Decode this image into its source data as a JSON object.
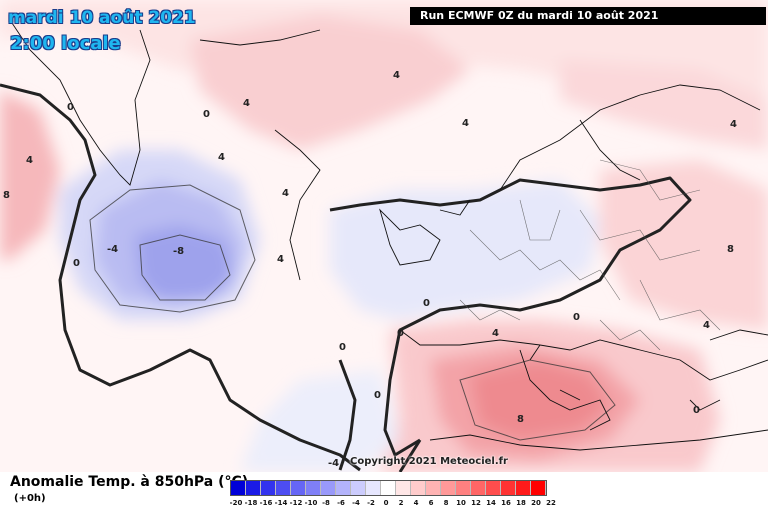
{
  "map": {
    "date_title": "mardi 10 août 2021",
    "time_title": "2:00 locale",
    "run_label": "Run ECMWF 0Z du mardi 10 août 2021",
    "copyright": "Copyright 2021 Meteociel.fr",
    "contour_labels": [
      "4",
      "4",
      "4",
      "4",
      "4",
      "4",
      "4",
      "4",
      "4",
      "4",
      "8",
      "8",
      "8",
      "-4",
      "-8",
      "0",
      "0",
      "0",
      "0",
      "0",
      "0",
      "0",
      "0",
      "0",
      "-4"
    ]
  },
  "legend": {
    "title": "Anomalie Temp. à 850hPa (°C)",
    "subtitle": "(+0h)",
    "scale_labels": [
      "-20",
      "-18",
      "-16",
      "-14",
      "-12",
      "-10",
      "-8",
      "-6",
      "-4",
      "-2",
      "0",
      "2",
      "4",
      "6",
      "8",
      "10",
      "12",
      "14",
      "16",
      "18",
      "20",
      "22"
    ],
    "scale_colors": [
      "#0000d8",
      "#1a1ae6",
      "#3333ee",
      "#4d4df2",
      "#6666f5",
      "#7f7ff7",
      "#9999fa",
      "#b3b3fb",
      "#ccccfd",
      "#e6e6fe",
      "#ffffff",
      "#ffe6e6",
      "#ffcccc",
      "#ffb3b3",
      "#ff9999",
      "#ff8080",
      "#ff6666",
      "#ff4d4d",
      "#ff3333",
      "#ff1a1a",
      "#ff0000"
    ]
  }
}
